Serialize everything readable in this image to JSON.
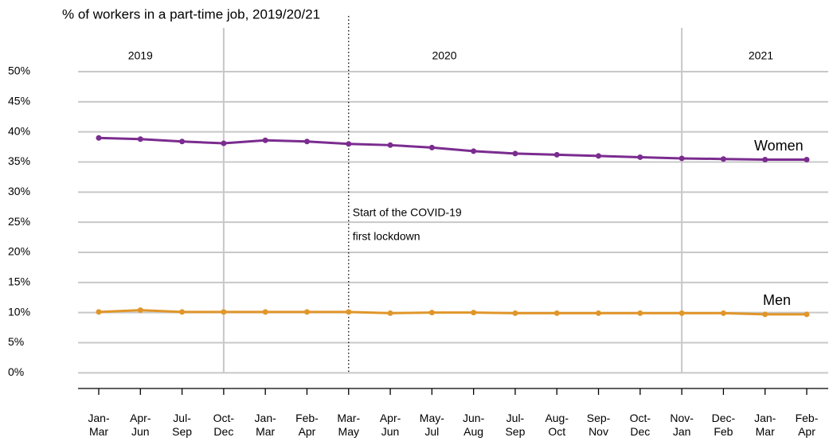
{
  "chart_data": {
    "type": "line",
    "title": "% of workers in a part-time job, 2019/20/21",
    "year_labels": [
      "2019",
      "2020",
      "2021"
    ],
    "annotation": [
      "Start of the COVID-19",
      "first lockdown"
    ],
    "categories": [
      "Jan-Mar",
      "Apr-Jun",
      "Jul-Sep",
      "Oct-Dec",
      "Jan-Mar",
      "Feb-Apr",
      "Mar-May",
      "Apr-Jun",
      "May-Jul",
      "Jun-Aug",
      "Jul-Sep",
      "Aug-Oct",
      "Sep-Nov",
      "Oct-Dec",
      "Nov-Jan",
      "Dec-Feb",
      "Jan-Mar",
      "Feb-Apr"
    ],
    "series": [
      {
        "name": "Women",
        "color": "#7b2c8f",
        "values": [
          39.0,
          38.8,
          38.4,
          38.1,
          38.6,
          38.4,
          38.0,
          37.8,
          37.4,
          36.8,
          36.4,
          36.2,
          36.0,
          35.8,
          35.6,
          35.5,
          35.4,
          35.4
        ]
      },
      {
        "name": "Men",
        "color": "#e0962a",
        "values": [
          10.1,
          10.4,
          10.1,
          10.1,
          10.1,
          10.1,
          10.1,
          9.9,
          10.0,
          10.0,
          9.9,
          9.9,
          9.9,
          9.9,
          9.9,
          9.9,
          9.7,
          9.7
        ]
      }
    ],
    "ylim": [
      -2.6,
      50
    ],
    "yticks": [
      {
        "value": 0,
        "label": "0%"
      },
      {
        "value": 5,
        "label": "5%"
      },
      {
        "value": 10,
        "label": "10%"
      },
      {
        "value": 15,
        "label": "15%"
      },
      {
        "value": 20,
        "label": "20%"
      },
      {
        "value": 25,
        "label": "25%"
      },
      {
        "value": 30,
        "label": "30%"
      },
      {
        "value": 35,
        "label": "35%"
      },
      {
        "value": 40,
        "label": "40%"
      },
      {
        "value": 45,
        "label": "45%"
      },
      {
        "value": 50,
        "label": "50%"
      }
    ],
    "grid": true
  }
}
